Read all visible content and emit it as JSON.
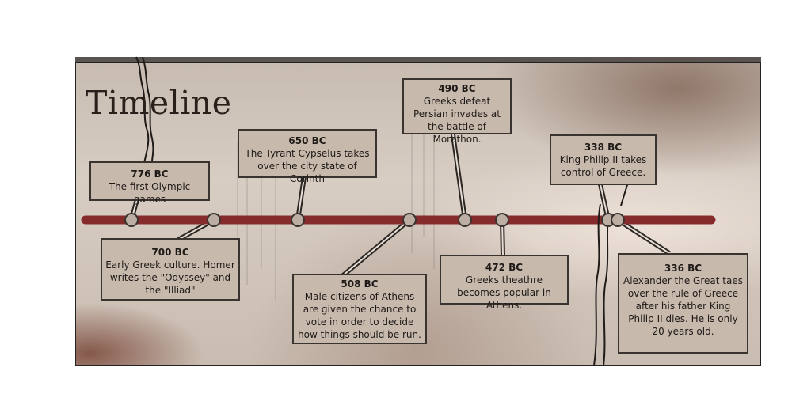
{
  "title": "Timeline",
  "colors": {
    "timeline_bar": "#862b2b",
    "box_fill": "#c8b9ad",
    "border": "#3a3430",
    "paper": "#d8cdc3"
  },
  "events": [
    {
      "date": "776 BC",
      "text": "The first Olympic games"
    },
    {
      "date": "700 BC",
      "text": "Early Greek culture. Homer writes the \"Odyssey\" and the \"Illiad\""
    },
    {
      "date": "650 BC",
      "text": "The Tyrant Cypselus takes over the city state of Corinth"
    },
    {
      "date": "508 BC",
      "text": "Male citizens of Athens are given the chance to vote in order to decide how things should be run."
    },
    {
      "date": "490 BC",
      "text": "Greeks defeat Persian invades at the battle of Morathon."
    },
    {
      "date": "472 BC",
      "text": "Greeks theathre becomes popular in Athens."
    },
    {
      "date": "338 BC",
      "text": "King Philip II takes control of Greece."
    },
    {
      "date": "336 BC",
      "text": "Alexander the Great taes over the rule of Greece after his father King Philip II dies. He is only 20 years old."
    }
  ]
}
